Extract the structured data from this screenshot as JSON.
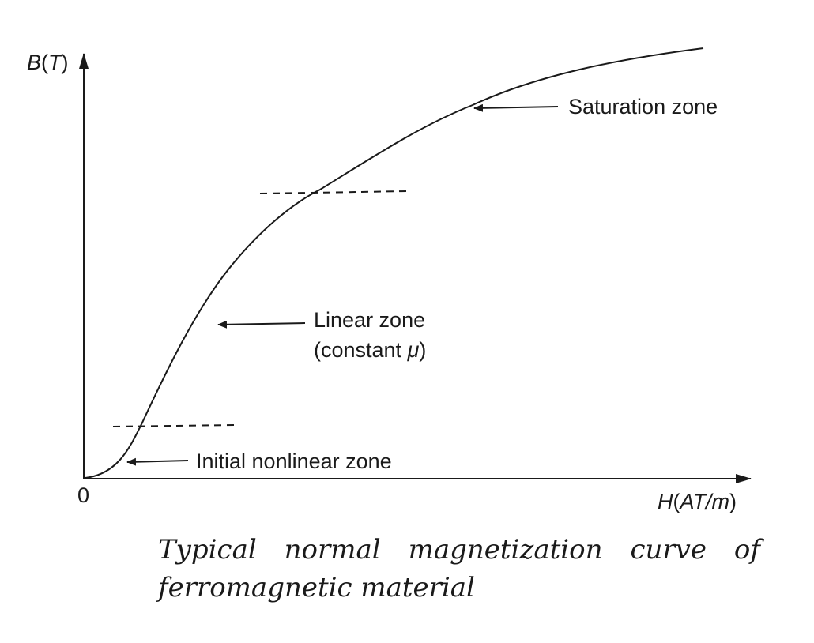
{
  "diagram": {
    "y_axis_label": {
      "var": "B",
      "open": "(",
      "unit": "T",
      "close": ")"
    },
    "x_axis_label": {
      "var": "H",
      "open": "(",
      "unit": "AT/m",
      "close": ")"
    },
    "origin_label": "0",
    "zones": {
      "saturation": "Saturation zone",
      "linear_line1": "Linear zone",
      "linear_line2_prefix": "(constant ",
      "linear_line2_symbol": "μ",
      "linear_line2_suffix": ")",
      "initial": "Initial nonlinear zone"
    }
  },
  "caption": {
    "line1": "Typical normal magnetization curve of",
    "line2": "ferromagnetic material"
  },
  "colors": {
    "ink": "#1a1a1a",
    "background": "#ffffff"
  }
}
